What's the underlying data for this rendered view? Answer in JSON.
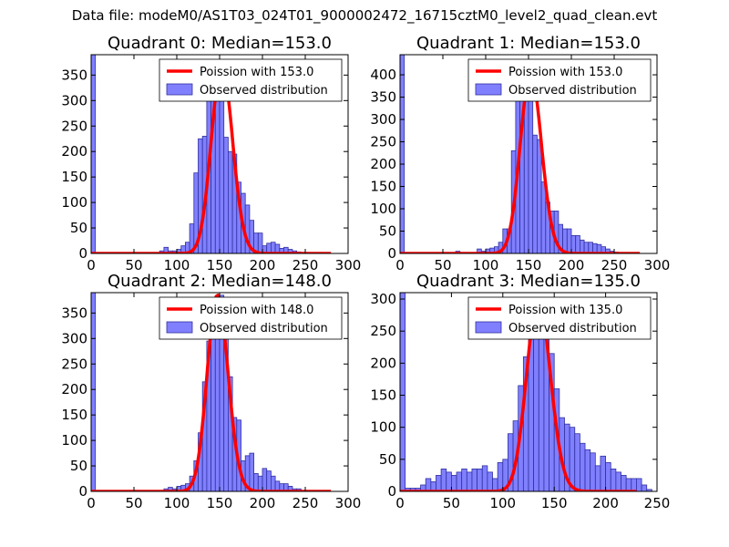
{
  "figure": {
    "suptitle": "Data file: modeM0/AS1T03_024T01_9000002472_16715cztM0_level2_quad_clean.evt"
  },
  "colors": {
    "bar_fill": "#8080ff",
    "bar_edge": "#3030a0",
    "poisson_line": "#ff0000",
    "axes": "#000000",
    "background": "#ffffff"
  },
  "chart_data": [
    {
      "type": "bar",
      "title": "Quadrant 0: Median=153.0",
      "median": 153.0,
      "xlim": [
        0,
        300
      ],
      "ylim": [
        0,
        390
      ],
      "xticks": [
        0,
        50,
        100,
        150,
        200,
        250,
        300
      ],
      "yticks": [
        0,
        50,
        100,
        150,
        200,
        250,
        300,
        350
      ],
      "bin_width": 5,
      "bin_starts": [
        0,
        80,
        85,
        90,
        95,
        100,
        105,
        110,
        115,
        120,
        125,
        130,
        135,
        140,
        145,
        150,
        155,
        160,
        165,
        170,
        175,
        180,
        185,
        190,
        195,
        200,
        205,
        210,
        215,
        220,
        225,
        230,
        235,
        240,
        245
      ],
      "values": [
        390,
        5,
        12,
        5,
        5,
        8,
        15,
        22,
        58,
        158,
        225,
        230,
        320,
        355,
        370,
        320,
        228,
        200,
        195,
        140,
        118,
        95,
        65,
        40,
        40,
        15,
        20,
        22,
        18,
        10,
        12,
        8,
        5,
        3,
        2
      ],
      "legend": {
        "line": "Poission with 153.0",
        "bars": "Observed distribution"
      }
    },
    {
      "type": "bar",
      "title": "Quadrant 1: Median=153.0",
      "median": 153.0,
      "xlim": [
        0,
        300
      ],
      "ylim": [
        0,
        445
      ],
      "xticks": [
        0,
        50,
        100,
        150,
        200,
        250,
        300
      ],
      "yticks": [
        0,
        50,
        100,
        150,
        200,
        250,
        300,
        350,
        400
      ],
      "bin_width": 5,
      "bin_starts": [
        0,
        65,
        90,
        95,
        100,
        105,
        110,
        115,
        120,
        125,
        130,
        135,
        140,
        145,
        150,
        155,
        160,
        165,
        170,
        175,
        180,
        185,
        190,
        195,
        200,
        205,
        210,
        215,
        220,
        225,
        230,
        235,
        240,
        245,
        250
      ],
      "values": [
        445,
        5,
        10,
        5,
        10,
        12,
        15,
        25,
        55,
        55,
        230,
        345,
        385,
        405,
        355,
        265,
        255,
        160,
        115,
        95,
        95,
        65,
        55,
        55,
        40,
        40,
        30,
        25,
        25,
        22,
        20,
        15,
        10,
        5,
        3
      ],
      "legend": {
        "line": "Poission with 153.0",
        "bars": "Observed distribution"
      }
    },
    {
      "type": "bar",
      "title": "Quadrant 2: Median=148.0",
      "median": 148.0,
      "xlim": [
        0,
        300
      ],
      "ylim": [
        0,
        390
      ],
      "xticks": [
        0,
        50,
        100,
        150,
        200,
        250,
        300
      ],
      "yticks": [
        0,
        50,
        100,
        150,
        200,
        250,
        300,
        350
      ],
      "bin_width": 5,
      "bin_starts": [
        0,
        85,
        90,
        95,
        100,
        105,
        110,
        115,
        120,
        125,
        130,
        135,
        140,
        145,
        150,
        155,
        160,
        165,
        170,
        175,
        180,
        185,
        190,
        195,
        200,
        205,
        210,
        215,
        220,
        225,
        230,
        235,
        240
      ],
      "values": [
        390,
        5,
        8,
        5,
        10,
        12,
        15,
        30,
        60,
        115,
        215,
        295,
        345,
        355,
        385,
        310,
        225,
        145,
        140,
        60,
        70,
        75,
        35,
        30,
        45,
        40,
        30,
        20,
        15,
        15,
        10,
        5,
        5
      ],
      "legend": {
        "line": "Poission with 148.0",
        "bars": "Observed distribution"
      }
    },
    {
      "type": "bar",
      "title": "Quadrant 3: Median=135.0",
      "median": 135.0,
      "xlim": [
        0,
        250
      ],
      "ylim": [
        0,
        310
      ],
      "xticks": [
        0,
        50,
        100,
        150,
        200,
        250
      ],
      "yticks": [
        0,
        50,
        100,
        150,
        200,
        250,
        300
      ],
      "bin_width": 5,
      "bin_starts": [
        0,
        5,
        10,
        15,
        20,
        25,
        30,
        35,
        40,
        45,
        50,
        55,
        60,
        65,
        70,
        75,
        80,
        85,
        90,
        95,
        100,
        105,
        110,
        115,
        120,
        125,
        130,
        135,
        140,
        145,
        150,
        155,
        160,
        165,
        170,
        175,
        180,
        185,
        190,
        195,
        200,
        205,
        210,
        215,
        220,
        225,
        230,
        235,
        240
      ],
      "values": [
        310,
        5,
        5,
        5,
        10,
        20,
        15,
        25,
        35,
        30,
        25,
        30,
        35,
        30,
        35,
        35,
        40,
        30,
        20,
        45,
        50,
        90,
        110,
        165,
        210,
        270,
        300,
        270,
        240,
        215,
        160,
        115,
        105,
        100,
        90,
        75,
        65,
        60,
        40,
        55,
        45,
        35,
        30,
        25,
        20,
        20,
        20,
        10,
        3
      ],
      "legend": {
        "line": "Poission with 135.0",
        "bars": "Observed distribution"
      }
    }
  ]
}
